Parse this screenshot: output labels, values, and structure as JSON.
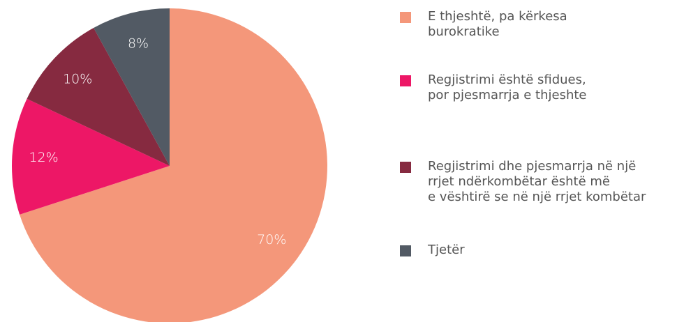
{
  "chart_data": {
    "type": "pie",
    "categories": [
      "E thjeshtë, pa kërkesa\nburokratike",
      "Regjistrimi është sfidues,\npor pjesmarrja e thjeshte",
      "Regjistrimi dhe pjesmarrja në një\nrrjet ndërkombëtar është më\ne vështirë se në një rrjet kombëtar",
      "Tjetër"
    ],
    "values": [
      70,
      12,
      10,
      8
    ],
    "value_labels": [
      "70%",
      "12%",
      "10%",
      "8%"
    ],
    "colors": [
      "#f4977a",
      "#ed1766",
      "#862a40",
      "#525a64"
    ]
  }
}
